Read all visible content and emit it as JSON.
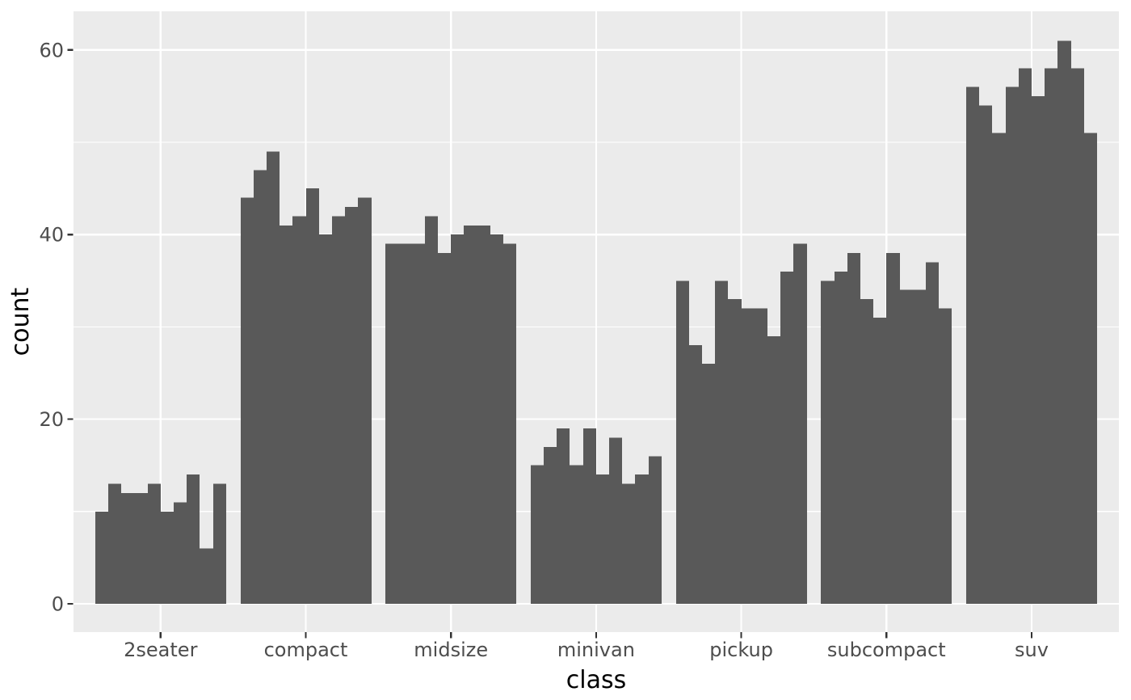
{
  "chart_data": {
    "type": "bar",
    "title": "",
    "xlabel": "class",
    "ylabel": "count",
    "categories": [
      "2seater",
      "compact",
      "midsize",
      "minivan",
      "pickup",
      "subcompact",
      "suv"
    ],
    "groups": [
      {
        "category": "2seater",
        "values": [
          10,
          13,
          12,
          12,
          13,
          10,
          11,
          14,
          6,
          13
        ]
      },
      {
        "category": "compact",
        "values": [
          44,
          47,
          49,
          41,
          42,
          45,
          40,
          42,
          43,
          44
        ]
      },
      {
        "category": "midsize",
        "values": [
          39,
          39,
          39,
          42,
          38,
          40,
          41,
          41,
          40,
          39
        ]
      },
      {
        "category": "minivan",
        "values": [
          15,
          17,
          19,
          15,
          19,
          14,
          18,
          13,
          14,
          16
        ]
      },
      {
        "category": "pickup",
        "values": [
          35,
          28,
          26,
          35,
          33,
          32,
          32,
          29,
          36,
          39
        ]
      },
      {
        "category": "subcompact",
        "values": [
          35,
          36,
          38,
          33,
          31,
          38,
          34,
          34,
          37,
          32
        ]
      },
      {
        "category": "suv",
        "values": [
          56,
          54,
          51,
          56,
          58,
          55,
          58,
          61,
          58,
          51
        ]
      }
    ],
    "bars_per_category": 10,
    "y_axis": {
      "ticks": [
        0,
        20,
        40,
        60
      ],
      "tick_labels": [
        "0",
        "20",
        "40",
        "60"
      ],
      "minor_ticks": [
        10,
        30,
        50
      ],
      "range": [
        -3,
        64.2
      ]
    },
    "grid": "major-and-minor",
    "legend": "none",
    "style": {
      "bar_color": "#595959",
      "panel_background": "#EBEBEB",
      "grid_color": "#FFFFFF",
      "figure_background": "#FFFFFF",
      "tick_mark_color": "#333333",
      "tick_label_color": "#4D4D4D",
      "axis_title_color": "#000000"
    }
  }
}
